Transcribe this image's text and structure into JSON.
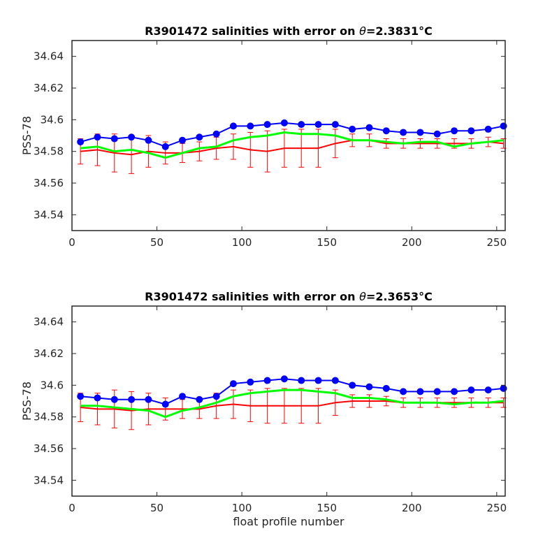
{
  "chart_data": [
    {
      "type": "scatter",
      "title_prefix": "R3901472 salinities with error on ",
      "title_theta": "θ",
      "title_value": "=2.3831",
      "title_unit": "°C",
      "xlabel": "",
      "ylabel": "PSS-78",
      "xlim": [
        0,
        255
      ],
      "ylim": [
        34.53,
        34.65
      ],
      "xticks": [
        0,
        50,
        100,
        150,
        200,
        250
      ],
      "yticks": [
        34.54,
        34.56,
        34.58,
        34.6,
        34.62,
        34.64
      ],
      "ytick_labels": [
        "34.54",
        "34.56",
        "34.58",
        "34.6",
        "34.62",
        "34.64"
      ],
      "grid": false,
      "colors": {
        "float": "#0000ff",
        "mapped": "#ff0000",
        "calibrated": "#00ff00"
      },
      "series": [
        {
          "key": "float",
          "marker": "circle",
          "x": [
            5,
            15,
            25,
            35,
            45,
            55,
            65,
            75,
            85,
            95,
            105,
            115,
            125,
            135,
            145,
            155,
            165,
            175,
            185,
            195,
            205,
            215,
            225,
            235,
            245,
            254
          ],
          "y": [
            34.586,
            34.589,
            34.588,
            34.589,
            34.587,
            34.583,
            34.587,
            34.589,
            34.591,
            34.596,
            34.596,
            34.597,
            34.598,
            34.597,
            34.597,
            34.597,
            34.594,
            34.595,
            34.593,
            34.592,
            34.592,
            34.591,
            34.593,
            34.593,
            34.594,
            34.596
          ]
        },
        {
          "key": "mapped",
          "marker": "errorbar",
          "x": [
            5,
            15,
            25,
            35,
            45,
            55,
            65,
            75,
            85,
            95,
            105,
            115,
            125,
            135,
            145,
            155,
            165,
            175,
            185,
            195,
            205,
            215,
            225,
            235,
            245,
            254
          ],
          "y": [
            34.58,
            34.581,
            34.579,
            34.578,
            34.58,
            34.579,
            34.579,
            34.58,
            34.582,
            34.583,
            34.581,
            34.58,
            34.582,
            34.582,
            34.582,
            34.585,
            34.587,
            34.587,
            34.585,
            34.585,
            34.585,
            34.585,
            34.585,
            34.585,
            34.586,
            34.585
          ],
          "err": [
            0.008,
            0.01,
            0.012,
            0.012,
            0.01,
            0.007,
            0.006,
            0.006,
            0.007,
            0.008,
            0.011,
            0.013,
            0.012,
            0.012,
            0.012,
            0.009,
            0.004,
            0.004,
            0.003,
            0.003,
            0.003,
            0.003,
            0.003,
            0.003,
            0.003,
            0.003
          ]
        },
        {
          "key": "calibrated",
          "marker": "line",
          "x": [
            5,
            15,
            25,
            35,
            45,
            55,
            65,
            75,
            85,
            95,
            105,
            115,
            125,
            135,
            145,
            155,
            165,
            175,
            185,
            195,
            205,
            215,
            225,
            235,
            245,
            254
          ],
          "y": [
            34.582,
            34.583,
            34.58,
            34.581,
            34.579,
            34.576,
            34.579,
            34.582,
            34.583,
            34.587,
            34.589,
            34.59,
            34.592,
            34.591,
            34.591,
            34.59,
            34.587,
            34.587,
            34.586,
            34.585,
            34.586,
            34.586,
            34.583,
            34.585,
            34.586,
            34.587
          ]
        }
      ]
    },
    {
      "type": "scatter",
      "title_prefix": "R3901472 salinities with error on ",
      "title_theta": "θ",
      "title_value": "=2.3653",
      "title_unit": "°C",
      "xlabel": "float profile number",
      "ylabel": "PSS-78",
      "xlim": [
        0,
        255
      ],
      "ylim": [
        34.53,
        34.65
      ],
      "xticks": [
        0,
        50,
        100,
        150,
        200,
        250
      ],
      "yticks": [
        34.54,
        34.56,
        34.58,
        34.6,
        34.62,
        34.64
      ],
      "ytick_labels": [
        "34.54",
        "34.56",
        "34.58",
        "34.6",
        "34.62",
        "34.64"
      ],
      "grid": false,
      "colors": {
        "float": "#0000ff",
        "mapped": "#ff0000",
        "calibrated": "#00ff00"
      },
      "series": [
        {
          "key": "float",
          "marker": "circle",
          "x": [
            5,
            15,
            25,
            35,
            45,
            55,
            65,
            75,
            85,
            95,
            105,
            115,
            125,
            135,
            145,
            155,
            165,
            175,
            185,
            195,
            205,
            215,
            225,
            235,
            245,
            254
          ],
          "y": [
            34.593,
            34.592,
            34.591,
            34.591,
            34.591,
            34.588,
            34.593,
            34.591,
            34.593,
            34.601,
            34.602,
            34.603,
            34.604,
            34.603,
            34.603,
            34.603,
            34.6,
            34.599,
            34.598,
            34.596,
            34.596,
            34.596,
            34.596,
            34.597,
            34.597,
            34.598
          ]
        },
        {
          "key": "mapped",
          "marker": "errorbar",
          "x": [
            5,
            15,
            25,
            35,
            45,
            55,
            65,
            75,
            85,
            95,
            105,
            115,
            125,
            135,
            145,
            155,
            165,
            175,
            185,
            195,
            205,
            215,
            225,
            235,
            245,
            254
          ],
          "y": [
            34.586,
            34.585,
            34.585,
            34.584,
            34.585,
            34.585,
            34.585,
            34.585,
            34.587,
            34.588,
            34.587,
            34.587,
            34.587,
            34.587,
            34.587,
            34.589,
            34.59,
            34.59,
            34.59,
            34.589,
            34.589,
            34.589,
            34.589,
            34.589,
            34.589,
            34.589
          ],
          "err": [
            0.009,
            0.01,
            0.012,
            0.012,
            0.01,
            0.007,
            0.006,
            0.006,
            0.008,
            0.009,
            0.01,
            0.011,
            0.011,
            0.011,
            0.011,
            0.008,
            0.004,
            0.004,
            0.003,
            0.003,
            0.003,
            0.003,
            0.003,
            0.003,
            0.003,
            0.003
          ]
        },
        {
          "key": "calibrated",
          "marker": "line",
          "x": [
            5,
            15,
            25,
            35,
            45,
            55,
            65,
            75,
            85,
            95,
            105,
            115,
            125,
            135,
            145,
            155,
            165,
            175,
            185,
            195,
            205,
            215,
            225,
            235,
            245,
            254
          ],
          "y": [
            34.587,
            34.587,
            34.586,
            34.585,
            34.584,
            34.58,
            34.584,
            34.586,
            34.589,
            34.593,
            34.595,
            34.596,
            34.597,
            34.597,
            34.596,
            34.595,
            34.592,
            34.592,
            34.591,
            34.589,
            34.589,
            34.589,
            34.588,
            34.589,
            34.589,
            34.59
          ]
        }
      ]
    }
  ]
}
